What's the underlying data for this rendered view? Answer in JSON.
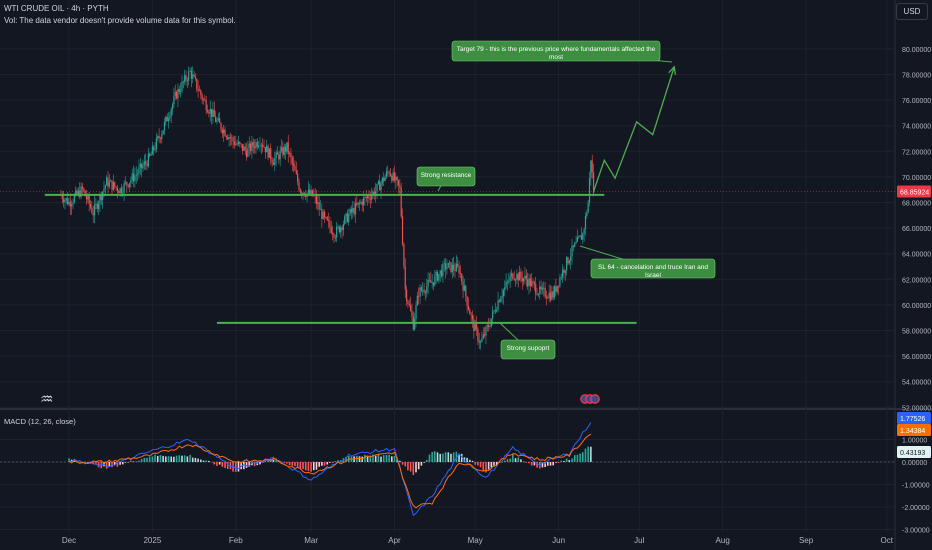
{
  "header": {
    "symbol": "WTI CRUDE OIL · 4h · PYTH",
    "volume_note": "Vol: The data vendor doesn't provide volume data for this symbol.",
    "currency_button": "USD"
  },
  "annotations": {
    "target": "Target 79  - this is the previous price where fundamentals affected the most",
    "resistance": "Strong resistance",
    "stop_loss": "SL 64 - cancelation and truce Iran and Israel",
    "support": "Strong supoprt"
  },
  "colors": {
    "background": "#131722",
    "up_candle": "#26a69a",
    "down_candle": "#ef5350",
    "annotation_green": "#4caf50",
    "macd_line": "#2962ff",
    "signal_line": "#ff6d00",
    "price_tag": "#f23645"
  },
  "chart_data": [
    {
      "type": "candlestick",
      "title": "WTI CRUDE OIL · 4h · PYTH",
      "x_tick_labels": [
        "Dec",
        "2025",
        "Feb",
        "Mar",
        "Apr",
        "May",
        "Jun",
        "Jul",
        "Aug",
        "Sep",
        "Oct"
      ],
      "y_tick_labels": [
        "52.00000",
        "54.00000",
        "56.00000",
        "58.00000",
        "60.00000",
        "62.00000",
        "64.00000",
        "66.00000",
        "68.00000",
        "70.00000",
        "72.00000",
        "74.00000",
        "76.00000",
        "78.00000",
        "80.00000"
      ],
      "ylim": [
        51.5,
        81.5
      ],
      "last_price": "68.85924",
      "grid": true,
      "price_path": [
        {
          "x": "Nov 28",
          "y": 68.6
        },
        {
          "x": "Dec 1",
          "y": 68.0
        },
        {
          "x": "Dec 6",
          "y": 69.0
        },
        {
          "x": "Dec 10",
          "y": 67.2
        },
        {
          "x": "Dec 15",
          "y": 69.6
        },
        {
          "x": "Dec 20",
          "y": 69.0
        },
        {
          "x": "Dec 26",
          "y": 70.2
        },
        {
          "x": "Dec 31",
          "y": 71.5
        },
        {
          "x": "Jan 5",
          "y": 73.8
        },
        {
          "x": "Jan 10",
          "y": 76.5
        },
        {
          "x": "Jan 15",
          "y": 78.2
        },
        {
          "x": "Jan 20",
          "y": 76.0
        },
        {
          "x": "Jan 25",
          "y": 74.3
        },
        {
          "x": "Jan 31",
          "y": 72.8
        },
        {
          "x": "Feb 5",
          "y": 72.0
        },
        {
          "x": "Feb 10",
          "y": 72.9
        },
        {
          "x": "Feb 15",
          "y": 71.3
        },
        {
          "x": "Feb 20",
          "y": 72.3
        },
        {
          "x": "Feb 25",
          "y": 69.0
        },
        {
          "x": "Mar 2",
          "y": 68.5
        },
        {
          "x": "Mar 6",
          "y": 66.6
        },
        {
          "x": "Mar 10",
          "y": 65.6
        },
        {
          "x": "Mar 15",
          "y": 67.0
        },
        {
          "x": "Mar 20",
          "y": 68.1
        },
        {
          "x": "Mar 25",
          "y": 68.9
        },
        {
          "x": "Mar 30",
          "y": 70.5
        },
        {
          "x": "Apr 3",
          "y": 69.0
        },
        {
          "x": "Apr 5",
          "y": 61.2
        },
        {
          "x": "Apr 8",
          "y": 58.5
        },
        {
          "x": "Apr 10",
          "y": 61.0
        },
        {
          "x": "Apr 15",
          "y": 61.8
        },
        {
          "x": "Apr 20",
          "y": 63.0
        },
        {
          "x": "Apr 25",
          "y": 62.8
        },
        {
          "x": "Apr 30",
          "y": 58.6
        },
        {
          "x": "May 3",
          "y": 57.0
        },
        {
          "x": "May 6",
          "y": 58.4
        },
        {
          "x": "May 10",
          "y": 60.6
        },
        {
          "x": "May 15",
          "y": 62.4
        },
        {
          "x": "May 20",
          "y": 62.0
        },
        {
          "x": "May 25",
          "y": 61.0
        },
        {
          "x": "May 30",
          "y": 60.8
        },
        {
          "x": "Jun 2",
          "y": 62.4
        },
        {
          "x": "Jun 6",
          "y": 64.2
        },
        {
          "x": "Jun 10",
          "y": 65.5
        },
        {
          "x": "Jun 12",
          "y": 68.0
        },
        {
          "x": "Jun 13",
          "y": 71.5
        },
        {
          "x": "Jun 14",
          "y": 68.86
        }
      ],
      "projection_path": [
        {
          "x": "Jun 14",
          "y": 68.86
        },
        {
          "x": "Jun 18",
          "y": 71.3
        },
        {
          "x": "Jun 22",
          "y": 69.9
        },
        {
          "x": "Jun 30",
          "y": 74.3
        },
        {
          "x": "Jul 6",
          "y": 73.3
        },
        {
          "x": "Jul 14",
          "y": 78.6
        }
      ],
      "lines": [
        {
          "label": "Strong resistance",
          "y": 68.6,
          "x_start": "Nov 22",
          "x_end": "Jun 18"
        },
        {
          "label": "Strong supoprt",
          "y": 58.6,
          "x_start": "Jan 25",
          "x_end": "Jun 30"
        }
      ]
    },
    {
      "type": "line",
      "title": "MACD (12, 26, close)",
      "y_tick_labels": [
        "1.00000",
        "0.00000",
        "-1.00000",
        "-2.00000",
        "-3.00000"
      ],
      "ylim": [
        -3.1,
        2.3
      ],
      "values_shown": [
        "1.77526",
        "1.34384",
        "0.43193"
      ],
      "series": [
        {
          "name": "MACD",
          "color": "#2962ff",
          "values": [
            {
              "x": "Dec 1",
              "y": 0.1
            },
            {
              "x": "Dec 15",
              "y": -0.2
            },
            {
              "x": "Jan 1",
              "y": 0.5
            },
            {
              "x": "Jan 15",
              "y": 1.0
            },
            {
              "x": "Feb 1",
              "y": -0.3
            },
            {
              "x": "Feb 15",
              "y": 0.2
            },
            {
              "x": "Mar 1",
              "y": -0.8
            },
            {
              "x": "Mar 15",
              "y": 0.3
            },
            {
              "x": "Apr 1",
              "y": 0.6
            },
            {
              "x": "Apr 8",
              "y": -2.4
            },
            {
              "x": "Apr 15",
              "y": -1.5
            },
            {
              "x": "Apr 25",
              "y": 0.3
            },
            {
              "x": "May 5",
              "y": -0.7
            },
            {
              "x": "May 15",
              "y": 0.6
            },
            {
              "x": "May 25",
              "y": -0.1
            },
            {
              "x": "Jun 5",
              "y": 0.4
            },
            {
              "x": "Jun 13",
              "y": 1.8
            }
          ]
        },
        {
          "name": "Signal",
          "color": "#ff6d00",
          "values": [
            {
              "x": "Dec 1",
              "y": 0.0
            },
            {
              "x": "Dec 15",
              "y": 0.0
            },
            {
              "x": "Jan 1",
              "y": 0.3
            },
            {
              "x": "Jan 15",
              "y": 0.8
            },
            {
              "x": "Feb 1",
              "y": 0.0
            },
            {
              "x": "Feb 15",
              "y": 0.1
            },
            {
              "x": "Mar 1",
              "y": -0.5
            },
            {
              "x": "Mar 15",
              "y": 0.1
            },
            {
              "x": "Apr 1",
              "y": 0.4
            },
            {
              "x": "Apr 8",
              "y": -2.0
            },
            {
              "x": "Apr 15",
              "y": -1.8
            },
            {
              "x": "Apr 25",
              "y": 0.0
            },
            {
              "x": "May 5",
              "y": -0.4
            },
            {
              "x": "May 15",
              "y": 0.4
            },
            {
              "x": "May 25",
              "y": 0.1
            },
            {
              "x": "Jun 5",
              "y": 0.3
            },
            {
              "x": "Jun 13",
              "y": 1.3
            }
          ]
        }
      ]
    }
  ]
}
